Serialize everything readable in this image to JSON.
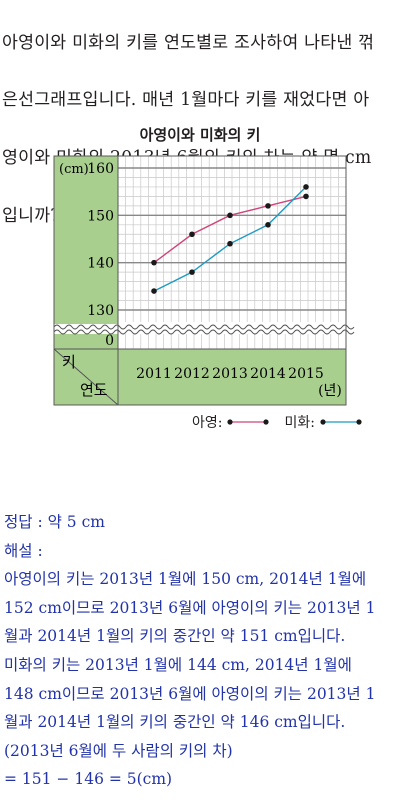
{
  "question": {
    "lines": [
      "아영이와 미화의 키를 연도별로 조사하여 나타낸 꺾",
      "은선그래프입니다. 매년 1월마다 키를 재었다면 아",
      "영이와 미화의 2013년 6월의 키의 차는 약 몇 cm",
      "입니까?"
    ]
  },
  "chart_data": {
    "type": "line",
    "title": "아영이와 미화의 키",
    "ylabel": "(cm)",
    "xlabel": "(년)",
    "y_axis_name": "키",
    "x_axis_name": "연도",
    "categories": [
      "2011",
      "2012",
      "2013",
      "2014",
      "2015"
    ],
    "y_ticks": [
      "160",
      "150",
      "140",
      "130",
      "0"
    ],
    "ylim": [
      130,
      160
    ],
    "axis_break": true,
    "series": [
      {
        "name": "아영",
        "values": [
          140,
          146,
          150,
          152,
          154
        ],
        "color": "#d0457a"
      },
      {
        "name": "미화",
        "values": [
          134,
          138,
          144,
          148,
          156
        ],
        "color": "#1b9bc4"
      }
    ],
    "colors": {
      "panel": "#a9cf8f",
      "grid": "#888888",
      "minor_grid": "#c8c8c8",
      "point": "#1a1a1a"
    },
    "legend": [
      {
        "label": "아영:",
        "series": "아영"
      },
      {
        "label": "미화:",
        "series": "미화"
      }
    ]
  },
  "answer": {
    "lines": [
      "정답 : 약 5 cm",
      "해설 :",
      "아영이의 키는 2013년 1월에 150 cm, 2014년 1월에",
      "152 cm이므로 2013년 6월에 아영이의 키는 2013년 1",
      "월과 2014년 1월의 키의 중간인 약 151 cm입니다.",
      "미화의 키는 2013년 1월에 144 cm, 2014년 1월에",
      "148 cm이므로 2013년 6월에 아영이의 키는 2013년 1",
      "월과 2014년 1월의 키의 중간인 약 146 cm입니다.",
      "(2013년 6월에 두 사람의 키의 차)",
      "= 151 − 146 = 5(cm)"
    ]
  }
}
